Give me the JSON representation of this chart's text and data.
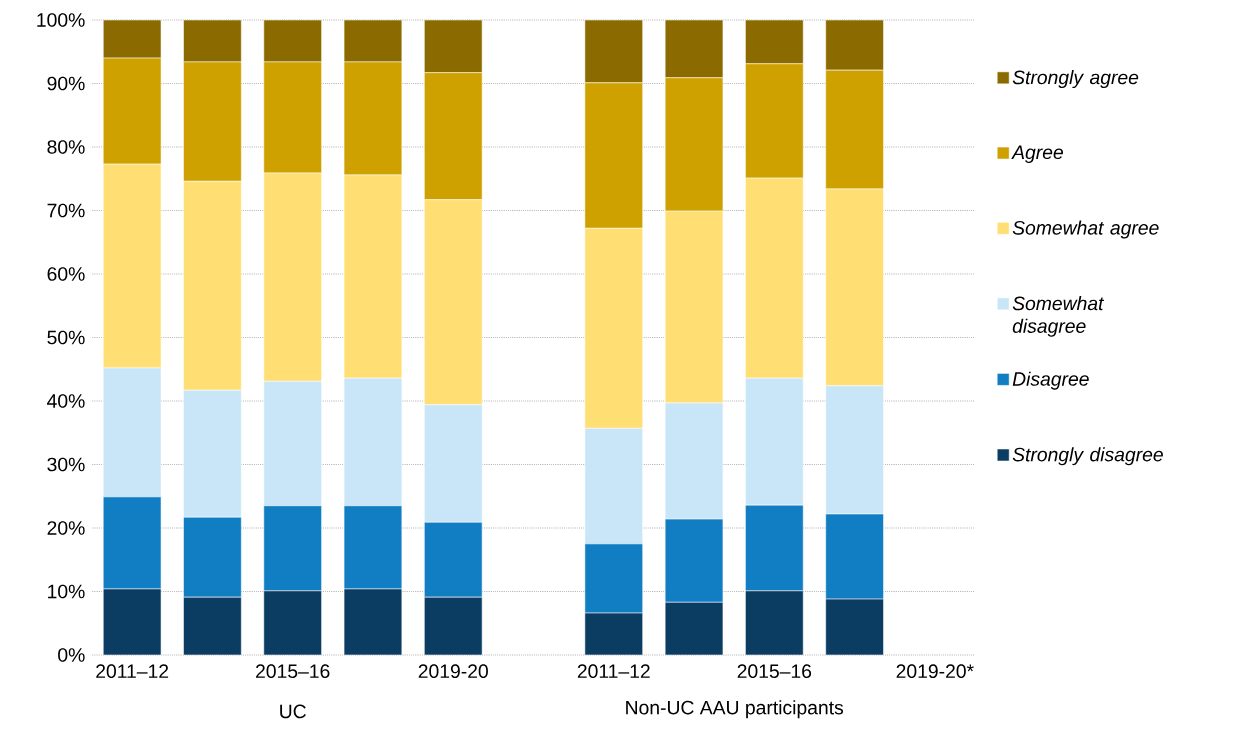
{
  "chart_data": {
    "type": "bar",
    "stacked": true,
    "categories": [
      "2011–12",
      null,
      "2015–16",
      null,
      "2019-20",
      null,
      "2011–12",
      null,
      "2015–16",
      null,
      "2019-20*"
    ],
    "series": [
      {
        "name": "Strongly disagree",
        "color": "#0b3d62",
        "values": [
          10.4,
          9.1,
          10.1,
          10.4,
          9.1,
          null,
          6.6,
          8.3,
          10.1,
          8.8,
          null
        ]
      },
      {
        "name": "Disagree",
        "color": "#117ec4",
        "values": [
          14.5,
          12.6,
          13.4,
          13.1,
          11.8,
          null,
          10.9,
          13.1,
          13.5,
          13.4,
          null
        ]
      },
      {
        "name": "Somewhat disagree",
        "color": "#c9e6f8",
        "values": [
          20.3,
          20.0,
          19.6,
          20.1,
          18.5,
          null,
          18.2,
          18.3,
          20.0,
          20.2,
          null
        ]
      },
      {
        "name": "Somewhat agree",
        "color": "#ffdf73",
        "values": [
          32.1,
          32.9,
          32.8,
          32.0,
          32.3,
          null,
          31.5,
          30.2,
          31.5,
          31.0,
          null
        ]
      },
      {
        "name": "Agree",
        "color": "#cea000",
        "values": [
          16.7,
          18.8,
          17.5,
          17.8,
          20.0,
          null,
          22.9,
          21.0,
          18.0,
          18.7,
          null
        ]
      },
      {
        "name": "Strongly agree",
        "color": "#8b6b00",
        "values": [
          6.0,
          6.6,
          6.6,
          6.6,
          8.3,
          null,
          9.9,
          9.1,
          6.9,
          7.9,
          null
        ]
      }
    ],
    "ylim": [
      0,
      100
    ],
    "yticks": [
      {
        "value": 0,
        "label": "0%"
      },
      {
        "value": 10,
        "label": "10%"
      },
      {
        "value": 20,
        "label": "20%"
      },
      {
        "value": 30,
        "label": "30%"
      },
      {
        "value": 40,
        "label": "40%"
      },
      {
        "value": 50,
        "label": "50%"
      },
      {
        "value": 60,
        "label": "60%"
      },
      {
        "value": 70,
        "label": "70%"
      },
      {
        "value": 80,
        "label": "80%"
      },
      {
        "value": 90,
        "label": "90%"
      },
      {
        "value": 100,
        "label": "100%"
      }
    ],
    "grid": "y",
    "legend": "right",
    "annotations": [
      "UC",
      "Non-UC AAU participants"
    ]
  }
}
